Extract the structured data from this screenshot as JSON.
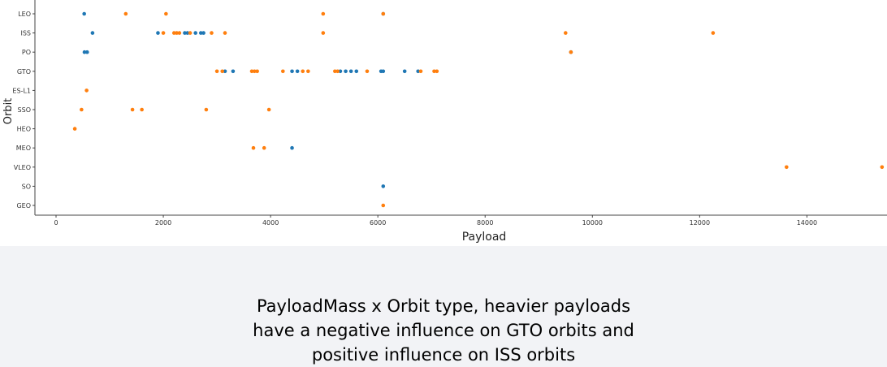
{
  "chart_data": {
    "type": "scatter",
    "xlabel": "Payload",
    "ylabel": "Orbit",
    "xlim": [
      -200,
      15500
    ],
    "xticks": [
      0,
      2000,
      4000,
      6000,
      8000,
      10000,
      12000,
      14000
    ],
    "xtick_labels": [
      "0",
      "2000",
      "4000",
      "6000",
      "8000",
      "10000",
      "12000",
      "14000"
    ],
    "categories": [
      "LEO",
      "ISS",
      "PO",
      "GTO",
      "ES-L1",
      "SSO",
      "HEO",
      "MEO",
      "VLEO",
      "SO",
      "GEO"
    ],
    "grid": false,
    "series": [
      {
        "color": "#1f77b4",
        "points": [
          [
            525,
            "LEO"
          ],
          [
            6100,
            "LEO"
          ],
          [
            680,
            "ISS"
          ],
          [
            1900,
            "ISS"
          ],
          [
            2400,
            "ISS"
          ],
          [
            2450,
            "ISS"
          ],
          [
            2600,
            "ISS"
          ],
          [
            2700,
            "ISS"
          ],
          [
            2750,
            "ISS"
          ],
          [
            530,
            "PO"
          ],
          [
            580,
            "PO"
          ],
          [
            9600,
            "PO"
          ],
          [
            3150,
            "GTO"
          ],
          [
            3300,
            "GTO"
          ],
          [
            4400,
            "GTO"
          ],
          [
            4500,
            "GTO"
          ],
          [
            5300,
            "GTO"
          ],
          [
            5400,
            "GTO"
          ],
          [
            5500,
            "GTO"
          ],
          [
            5600,
            "GTO"
          ],
          [
            6060,
            "GTO"
          ],
          [
            6100,
            "GTO"
          ],
          [
            6500,
            "GTO"
          ],
          [
            6750,
            "GTO"
          ],
          [
            4400,
            "MEO"
          ],
          [
            6100,
            "SO"
          ]
        ]
      },
      {
        "color": "#ff7f0e",
        "points": [
          [
            1300,
            "LEO"
          ],
          [
            2050,
            "LEO"
          ],
          [
            4980,
            "LEO"
          ],
          [
            6100,
            "LEO"
          ],
          [
            2000,
            "ISS"
          ],
          [
            2200,
            "ISS"
          ],
          [
            2250,
            "ISS"
          ],
          [
            2300,
            "ISS"
          ],
          [
            2500,
            "ISS"
          ],
          [
            2900,
            "ISS"
          ],
          [
            3150,
            "ISS"
          ],
          [
            4980,
            "ISS"
          ],
          [
            9500,
            "ISS"
          ],
          [
            12250,
            "ISS"
          ],
          [
            9600,
            "PO"
          ],
          [
            3000,
            "GTO"
          ],
          [
            3100,
            "GTO"
          ],
          [
            3650,
            "GTO"
          ],
          [
            3700,
            "GTO"
          ],
          [
            3750,
            "GTO"
          ],
          [
            4230,
            "GTO"
          ],
          [
            4600,
            "GTO"
          ],
          [
            4700,
            "GTO"
          ],
          [
            5200,
            "GTO"
          ],
          [
            5250,
            "GTO"
          ],
          [
            5800,
            "GTO"
          ],
          [
            6800,
            "GTO"
          ],
          [
            7050,
            "GTO"
          ],
          [
            7100,
            "GTO"
          ],
          [
            570,
            "ES-L1"
          ],
          [
            475,
            "SSO"
          ],
          [
            1425,
            "SSO"
          ],
          [
            1600,
            "SSO"
          ],
          [
            2800,
            "SSO"
          ],
          [
            3970,
            "SSO"
          ],
          [
            350,
            "HEO"
          ],
          [
            3680,
            "MEO"
          ],
          [
            3880,
            "MEO"
          ],
          [
            13620,
            "VLEO"
          ],
          [
            15400,
            "VLEO"
          ],
          [
            6100,
            "GEO"
          ]
        ]
      }
    ]
  },
  "caption": {
    "line1": "PayloadMass x Orbit type, heavier payloads",
    "line2": "have a negative influence on GTO orbits and",
    "line3": "positive influence on ISS orbits"
  }
}
